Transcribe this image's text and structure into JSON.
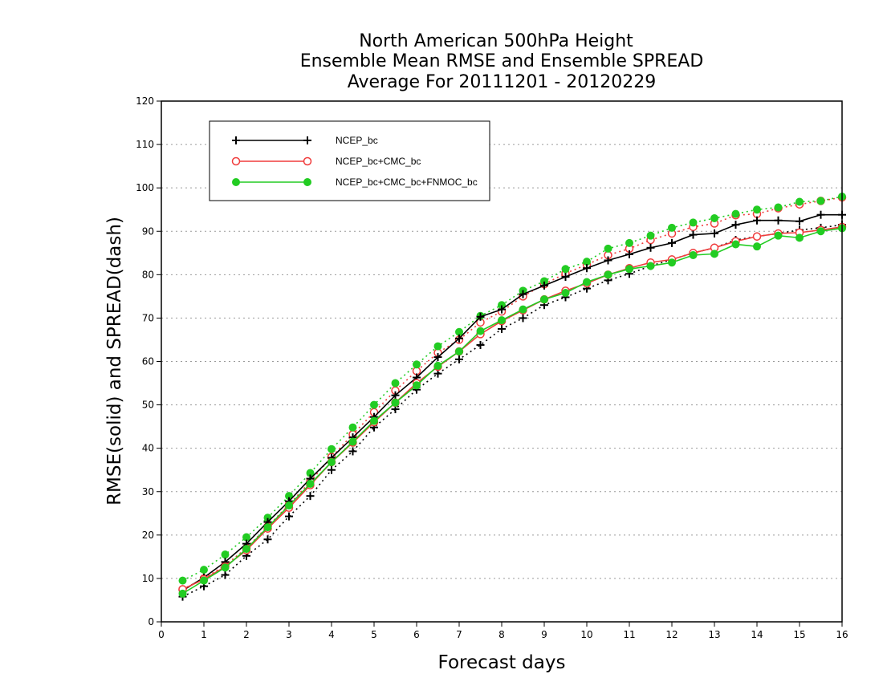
{
  "chart_data": {
    "type": "line",
    "title_lines": [
      "North American 500hPa Height",
      "Ensemble Mean RMSE and Ensemble SPREAD",
      "Average For 20111201 - 20120229"
    ],
    "xlabel": "Forecast days",
    "ylabel": "RMSE(solid) and SPREAD(dash)",
    "xlim": [
      0,
      16
    ],
    "ylim": [
      0,
      120
    ],
    "xticks": [
      0,
      1,
      2,
      3,
      4,
      5,
      6,
      7,
      8,
      9,
      10,
      11,
      12,
      13,
      14,
      15,
      16
    ],
    "yticks": [
      0,
      10,
      20,
      30,
      40,
      50,
      60,
      70,
      80,
      90,
      100,
      110,
      120
    ],
    "grid": "horizontal dotted",
    "legend_position": "top-left",
    "x": [
      0.5,
      1,
      1.5,
      2,
      2.5,
      3,
      3.5,
      4,
      4.5,
      5,
      5.5,
      6,
      6.5,
      7,
      7.5,
      8,
      8.5,
      9,
      9.5,
      10,
      10.5,
      11,
      11.5,
      12,
      12.5,
      13,
      13.5,
      14,
      14.5,
      15,
      15.5,
      16
    ],
    "series": [
      {
        "name": "NCEP_bc",
        "kind": "RMSE",
        "line_style": "solid",
        "color": "#000000",
        "marker": "plus",
        "values": [
          7.2,
          10.2,
          13.8,
          18.0,
          23.0,
          27.8,
          33.0,
          37.8,
          42.5,
          47.2,
          52.2,
          56.3,
          61.0,
          65.3,
          70.3,
          72.0,
          75.5,
          77.5,
          79.5,
          81.5,
          83.3,
          84.7,
          86.2,
          87.3,
          89.2,
          89.5,
          91.5,
          92.5,
          92.5,
          92.3,
          93.8,
          93.8
        ]
      },
      {
        "name": "NCEP_bc",
        "kind": "SPREAD",
        "line_style": "dotted",
        "color": "#000000",
        "marker": "plus",
        "values": [
          5.8,
          8.2,
          10.8,
          15.2,
          19.0,
          24.3,
          29.0,
          35.0,
          39.3,
          44.8,
          49.0,
          53.5,
          57.2,
          60.5,
          63.8,
          67.5,
          70.0,
          73.0,
          74.8,
          76.8,
          78.7,
          80.2,
          82.0,
          83.5,
          85.0,
          86.2,
          88.0,
          88.8,
          89.5,
          90.3,
          90.8,
          91.5
        ]
      },
      {
        "name": "NCEP_bc+CMC_bc",
        "kind": "RMSE",
        "line_style": "solid",
        "color": "#f03c3c",
        "marker": "open-circle",
        "values": [
          7.5,
          9.8,
          12.7,
          16.5,
          21.5,
          26.3,
          31.5,
          36.8,
          41.3,
          46.0,
          50.5,
          55.0,
          58.8,
          62.3,
          66.3,
          69.3,
          71.8,
          74.3,
          76.3,
          78.0,
          80.0,
          81.5,
          82.8,
          83.5,
          85.0,
          86.2,
          87.7,
          88.8,
          89.5,
          89.7,
          90.3,
          91.0
        ]
      },
      {
        "name": "NCEP_bc+CMC_bc",
        "kind": "SPREAD",
        "line_style": "dotted",
        "color": "#f03c3c",
        "marker": "open-circle",
        "values": [
          7.5,
          10.0,
          13.0,
          17.0,
          22.0,
          27.0,
          32.3,
          38.0,
          43.2,
          48.3,
          53.3,
          57.8,
          62.0,
          65.0,
          69.0,
          71.5,
          75.0,
          77.8,
          80.3,
          82.3,
          84.5,
          86.0,
          88.0,
          89.5,
          91.0,
          91.8,
          93.7,
          94.0,
          95.3,
          96.2,
          97.0,
          97.8
        ]
      },
      {
        "name": "NCEP_bc+CMC_bc+FNMOC_bc",
        "kind": "RMSE",
        "line_style": "solid",
        "color": "#22cc22",
        "marker": "filled-circle",
        "values": [
          6.5,
          9.5,
          12.5,
          16.8,
          21.8,
          26.8,
          31.8,
          36.8,
          41.5,
          46.3,
          50.5,
          54.5,
          59.0,
          62.3,
          67.0,
          69.5,
          72.0,
          74.3,
          75.8,
          78.3,
          80.0,
          81.3,
          82.0,
          82.8,
          84.5,
          84.8,
          87.0,
          86.5,
          89.0,
          88.5,
          90.0,
          90.7
        ]
      },
      {
        "name": "NCEP_bc+CMC_bc+FNMOC_bc",
        "kind": "SPREAD",
        "line_style": "dotted",
        "color": "#22cc22",
        "marker": "filled-circle",
        "values": [
          9.5,
          12.0,
          15.5,
          19.5,
          24.0,
          29.0,
          34.3,
          39.8,
          44.8,
          50.0,
          55.0,
          59.3,
          63.5,
          66.8,
          70.5,
          73.0,
          76.3,
          78.5,
          81.3,
          83.0,
          86.0,
          87.3,
          89.0,
          90.8,
          92.0,
          93.0,
          94.0,
          95.0,
          95.5,
          96.8,
          97.0,
          98.0
        ]
      }
    ]
  },
  "legend": {
    "items": [
      {
        "label": "NCEP_bc",
        "color": "#000000",
        "marker": "plus"
      },
      {
        "label": "NCEP_bc+CMC_bc",
        "color": "#f03c3c",
        "marker": "open-circle"
      },
      {
        "label": "NCEP_bc+CMC_bc+FNMOC_bc",
        "color": "#22cc22",
        "marker": "filled-circle"
      }
    ]
  }
}
